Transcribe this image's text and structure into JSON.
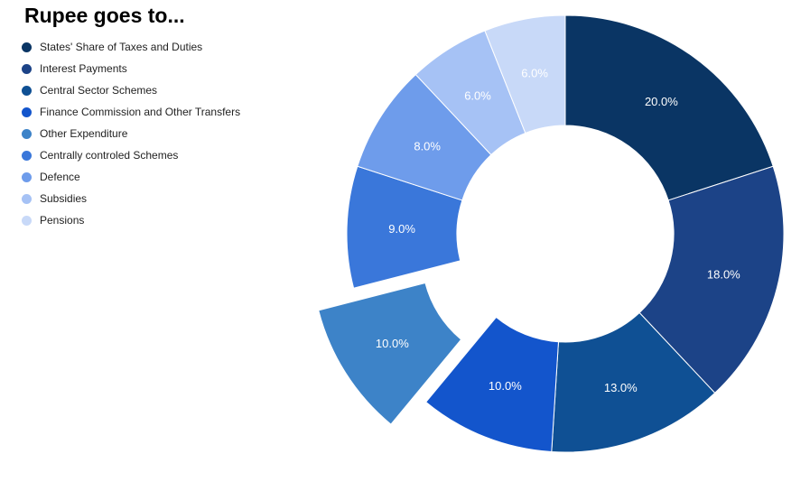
{
  "chart_data": {
    "type": "pie",
    "title": "Rupee goes to...",
    "legend_position": "top-left",
    "donut": true,
    "exploded": [
      "Other Expenditure"
    ],
    "slices": [
      {
        "name": "States' Share of Taxes and Duties",
        "value": 20,
        "label": "20.0%",
        "color": "#0a3564"
      },
      {
        "name": "Interest Payments",
        "value": 18,
        "label": "18.0%",
        "color": "#1c4387"
      },
      {
        "name": "Central Sector Schemes",
        "value": 13,
        "label": "13.0%",
        "color": "#0f5094"
      },
      {
        "name": "Finance Commission and Other Transfers",
        "value": 10,
        "label": "10.0%",
        "color": "#1355cc"
      },
      {
        "name": "Other Expenditure",
        "value": 10,
        "label": "10.0%",
        "color": "#3d83c8"
      },
      {
        "name": "Centrally controled Schemes",
        "value": 9,
        "label": "9.0%",
        "color": "#3a77da"
      },
      {
        "name": "Defence",
        "value": 8,
        "label": "8.0%",
        "color": "#6e9ceb"
      },
      {
        "name": "Subsidies",
        "value": 6,
        "label": "6.0%",
        "color": "#a6c2f5"
      },
      {
        "name": "Pensions",
        "value": 6,
        "label": "6.0%",
        "color": "#c8d9f8"
      }
    ]
  }
}
